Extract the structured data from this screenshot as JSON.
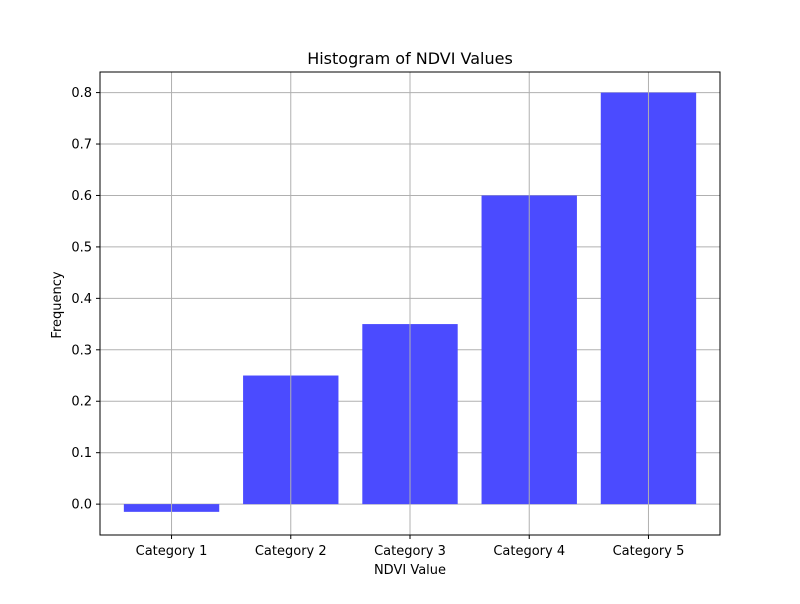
{
  "chart_data": {
    "type": "bar",
    "title": "Histogram of NDVI Values",
    "xlabel": "NDVI Value",
    "ylabel": "Frequency",
    "categories": [
      "Category 1",
      "Category 2",
      "Category 3",
      "Category 4",
      "Category 5"
    ],
    "values": [
      -0.015,
      0.25,
      0.35,
      0.6,
      0.8
    ],
    "ylim": [
      -0.06,
      0.84
    ],
    "yticks": [
      0.0,
      0.1,
      0.2,
      0.3,
      0.4,
      0.5,
      0.6,
      0.7,
      0.8
    ],
    "ytick_labels": [
      "0.0",
      "0.1",
      "0.2",
      "0.3",
      "0.4",
      "0.5",
      "0.6",
      "0.7",
      "0.8"
    ],
    "grid": true,
    "bar_color": "#4b4bff",
    "grid_color": "#b0b0b0"
  }
}
